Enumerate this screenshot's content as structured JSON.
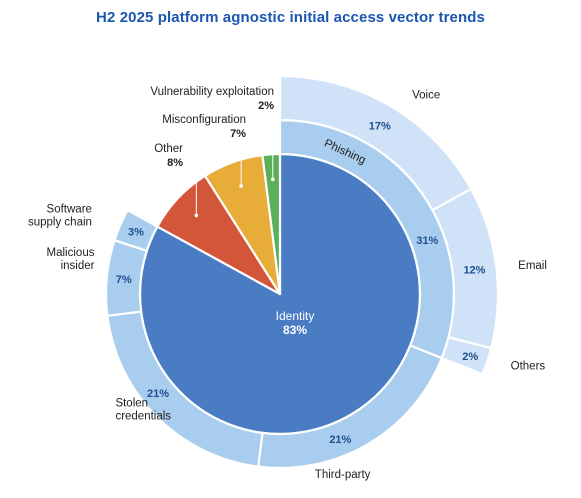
{
  "colors": {
    "title": "#1a56b0",
    "identity": "#4a7cc4",
    "identity_ring": "#a9cdee",
    "identity_outer": "#cfe2f7",
    "other": "#d4563a",
    "misconfiguration": "#e8ac38",
    "vulnerability": "#5caf5a",
    "label_blue": "#1f4f8f",
    "white": "#ffffff"
  },
  "chart_data": {
    "type": "sunburst",
    "title": "H2 2025 platform agnostic initial access vector trends",
    "core": [
      {
        "name": "Identity",
        "value": 83,
        "label": "83%"
      },
      {
        "name": "Other",
        "value": 8,
        "label": "8%"
      },
      {
        "name": "Misconfiguration",
        "value": 7,
        "label": "7%"
      },
      {
        "name": "Vulnerability exploitation",
        "value": 2,
        "label": "2%"
      }
    ],
    "identity_breakdown": [
      {
        "name": "Phishing",
        "value": 31,
        "label": "31%",
        "children": [
          {
            "name": "Voice",
            "value": 17,
            "label": "17%"
          },
          {
            "name": "Email",
            "value": 12,
            "label": "12%"
          },
          {
            "name": "Others",
            "value": 2,
            "label": "2%"
          }
        ]
      },
      {
        "name": "Third-party",
        "value": 21,
        "label": "21%"
      },
      {
        "name": "Stolen credentials",
        "value": 21,
        "label": "21%"
      },
      {
        "name": "Malicious insider",
        "value": 7,
        "label": "7%"
      },
      {
        "name": "Software supply chain",
        "value": 3,
        "label": "3%"
      }
    ]
  }
}
